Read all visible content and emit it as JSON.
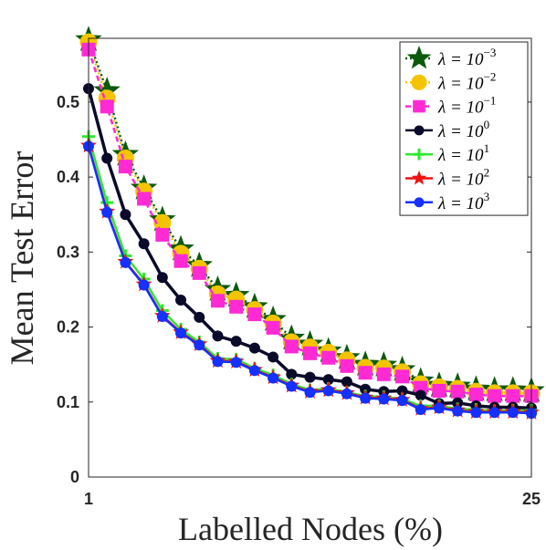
{
  "chart_data": {
    "type": "line",
    "xlabel": "Labelled Nodes (%)",
    "ylabel": "Mean Test Error",
    "xlim": [
      1,
      25
    ],
    "ylim": [
      0,
      0.585
    ],
    "xticks": [
      1,
      25
    ],
    "yticks": [
      0,
      0.1,
      0.2,
      0.3,
      0.4,
      0.5
    ],
    "ytick_labels": [
      "0",
      "0.1",
      "0.2",
      "0.3",
      "0.4",
      "0.5"
    ],
    "grid": false,
    "legend_position": "top-right",
    "x": [
      1,
      2,
      3,
      4,
      5,
      6,
      7,
      8,
      9,
      10,
      11,
      12,
      13,
      14,
      15,
      16,
      17,
      18,
      19,
      20,
      21,
      22,
      23,
      24,
      25
    ],
    "series": [
      {
        "name": "λ = 10^-3",
        "base": "λ = 10",
        "exp": "−3",
        "color": "#0b5a0b",
        "marker": "star",
        "values": [
          0.583,
          0.515,
          0.43,
          0.385,
          0.343,
          0.304,
          0.282,
          0.25,
          0.242,
          0.227,
          0.21,
          0.185,
          0.177,
          0.168,
          0.159,
          0.15,
          0.149,
          0.143,
          0.128,
          0.122,
          0.121,
          0.117,
          0.116,
          0.116,
          0.115
        ]
      },
      {
        "name": "λ = 10^-2",
        "base": "λ = 10",
        "exp": "−2",
        "color": "#f5c400",
        "marker": "circle",
        "values": [
          0.58,
          0.505,
          0.425,
          0.381,
          0.339,
          0.298,
          0.278,
          0.244,
          0.237,
          0.223,
          0.205,
          0.18,
          0.173,
          0.166,
          0.156,
          0.146,
          0.145,
          0.14,
          0.124,
          0.12,
          0.118,
          0.114,
          0.112,
          0.112,
          0.112
        ]
      },
      {
        "name": "λ = 10^-1",
        "base": "λ = 10",
        "exp": "−1",
        "color": "#ff2ad4",
        "marker": "square",
        "values": [
          0.57,
          0.494,
          0.414,
          0.371,
          0.323,
          0.288,
          0.272,
          0.235,
          0.227,
          0.217,
          0.199,
          0.174,
          0.165,
          0.159,
          0.148,
          0.139,
          0.137,
          0.134,
          0.119,
          0.115,
          0.114,
          0.11,
          0.108,
          0.108,
          0.108
        ]
      },
      {
        "name": "λ = 10^0",
        "base": "λ = 10",
        "exp": "0",
        "color": "#0a0a2a",
        "marker": "circle",
        "values": [
          0.518,
          0.425,
          0.35,
          0.311,
          0.266,
          0.236,
          0.213,
          0.188,
          0.181,
          0.172,
          0.16,
          0.137,
          0.133,
          0.13,
          0.127,
          0.117,
          0.114,
          0.115,
          0.109,
          0.098,
          0.099,
          0.095,
          0.093,
          0.093,
          0.092
        ]
      },
      {
        "name": "λ = 10^1",
        "base": "λ = 10",
        "exp": "1",
        "color": "#2ee82e",
        "marker": "plus",
        "values": [
          0.454,
          0.366,
          0.295,
          0.264,
          0.222,
          0.197,
          0.18,
          0.158,
          0.157,
          0.145,
          0.136,
          0.124,
          0.116,
          0.118,
          0.113,
          0.108,
          0.107,
          0.104,
          0.095,
          0.095,
          0.091,
          0.09,
          0.088,
          0.089,
          0.089
        ]
      },
      {
        "name": "λ = 10^2",
        "base": "λ = 10",
        "exp": "2",
        "color": "#ee1111",
        "marker": "star",
        "values": [
          0.442,
          0.354,
          0.287,
          0.257,
          0.215,
          0.193,
          0.177,
          0.155,
          0.154,
          0.143,
          0.133,
          0.122,
          0.114,
          0.116,
          0.112,
          0.106,
          0.105,
          0.103,
          0.091,
          0.093,
          0.089,
          0.087,
          0.087,
          0.087,
          0.086
        ]
      },
      {
        "name": "λ = 10^3",
        "base": "λ = 10",
        "exp": "3",
        "color": "#1530ff",
        "marker": "circle",
        "values": [
          0.441,
          0.353,
          0.286,
          0.256,
          0.214,
          0.192,
          0.176,
          0.154,
          0.153,
          0.142,
          0.132,
          0.121,
          0.113,
          0.115,
          0.111,
          0.105,
          0.104,
          0.102,
          0.09,
          0.092,
          0.088,
          0.086,
          0.086,
          0.086,
          0.085
        ]
      }
    ]
  }
}
